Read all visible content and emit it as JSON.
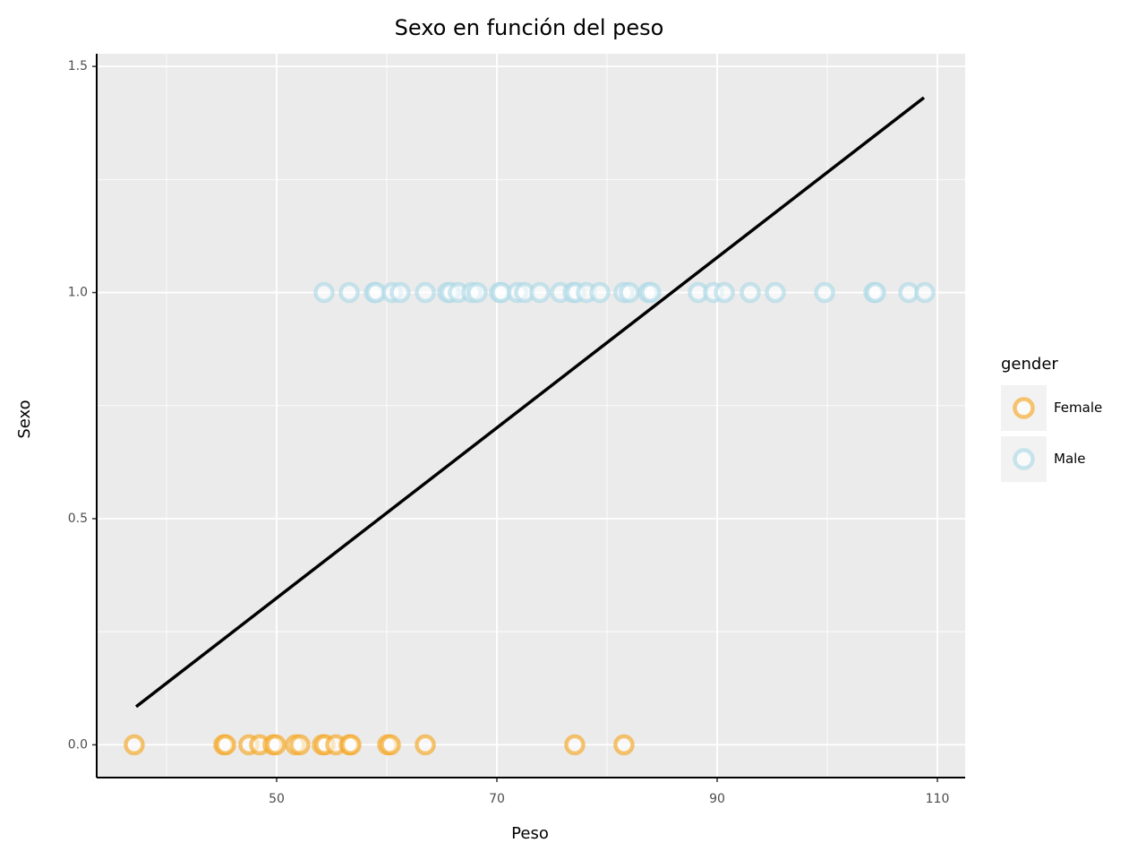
{
  "chart_data": {
    "type": "scatter",
    "title": "Sexo en función del peso",
    "x_label": "Peso",
    "y_label": "Sexo",
    "legend_title": "gender",
    "legend_position": "right",
    "grid": true,
    "xlim": [
      33.66,
      112.52
    ],
    "ylim": [
      -0.0725,
      1.528
    ],
    "xticks": [
      50,
      70,
      90,
      110
    ],
    "yticks": [
      {
        "value": 0,
        "label": "0.0"
      },
      0.5,
      {
        "value": 1,
        "label": "1.0"
      },
      1.5
    ],
    "minor_xticks": [
      40,
      60,
      80,
      100
    ],
    "minor_yticks": [
      0.25,
      0.75,
      1.25
    ],
    "series": [
      {
        "name": "Female",
        "color": "#f5a623",
        "x": [
          37.07,
          45.2,
          45.37,
          47.48,
          48.46,
          49.67,
          49.92,
          51.71,
          52.11,
          54.15,
          54.39,
          55.37,
          56.59,
          56.75,
          60.08,
          60.33,
          63.5,
          77.07,
          81.54
        ],
        "values": [
          0,
          0,
          0,
          0,
          0,
          0,
          0,
          0,
          0,
          0,
          0,
          0,
          0,
          0,
          0,
          0,
          0,
          0,
          0
        ]
      },
      {
        "name": "Male",
        "color": "#add8e6",
        "x": [
          54.31,
          56.59,
          58.86,
          59.02,
          60.49,
          61.22,
          63.5,
          65.53,
          65.77,
          66.5,
          67.72,
          68.21,
          70.24,
          70.41,
          71.87,
          72.52,
          73.9,
          75.77,
          76.91,
          77.15,
          78.13,
          79.35,
          81.54,
          82.03,
          83.74,
          83.98,
          88.29,
          89.67,
          90.65,
          93.01,
          95.28,
          99.76,
          104.23,
          104.39,
          107.4,
          108.86
        ],
        "values": [
          1,
          1,
          1,
          1,
          1,
          1,
          1,
          1,
          1,
          1,
          1,
          1,
          1,
          1,
          1,
          1,
          1,
          1,
          1,
          1,
          1,
          1,
          1,
          1,
          1,
          1,
          1,
          1,
          1,
          1,
          1,
          1,
          1,
          1,
          1,
          1
        ]
      }
    ],
    "fit_line": {
      "x": [
        37.24,
        108.78
      ],
      "values": [
        0.0843,
        1.431
      ],
      "color": "#000000"
    }
  }
}
